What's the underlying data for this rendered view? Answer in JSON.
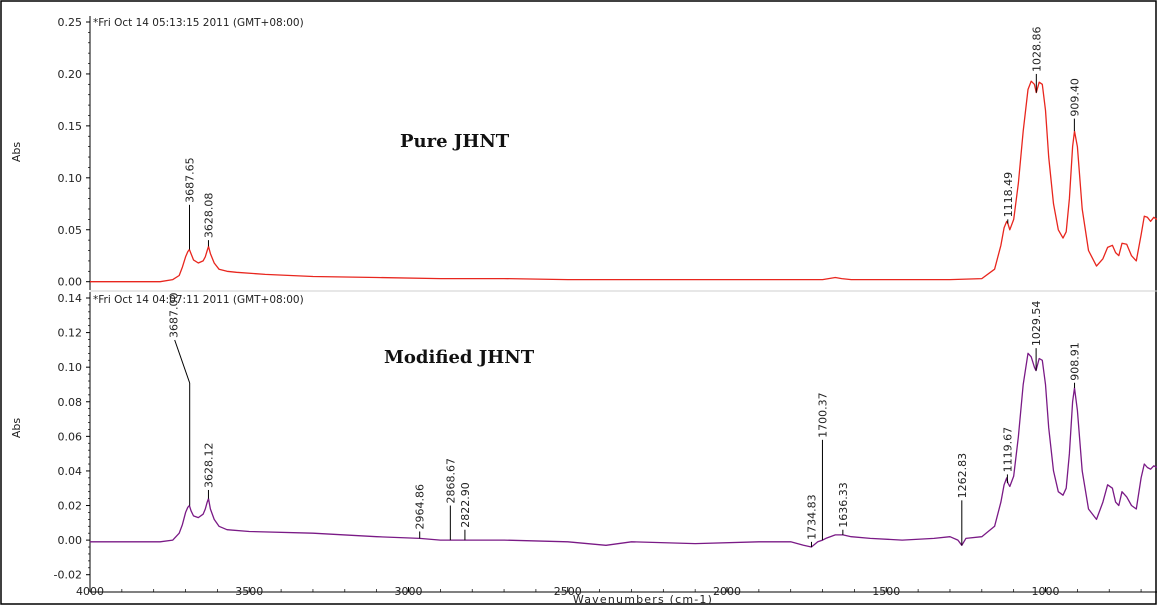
{
  "chart_data": [
    {
      "type": "line",
      "panel": "top",
      "title": "Pure JHNT",
      "timestamp": "*Fri Oct 14 05:13:15 2011 (GMT+08:00)",
      "ylabel": "Abs",
      "xlabel": "Wavenumbers (cm-1)",
      "xlim": [
        4000,
        650
      ],
      "ylim": [
        -0.008,
        0.25
      ],
      "yticks": [
        "0.00",
        "0.05",
        "0.10",
        "0.15",
        "0.20",
        "0.25"
      ],
      "xticks": [
        "4000",
        "3500",
        "3000",
        "2500",
        "2000",
        "1500",
        "1000"
      ],
      "color": "#e8261e",
      "series": [
        {
          "x": [
            4000,
            3780,
            3740,
            3720,
            3710,
            3700,
            3693,
            3688,
            3683,
            3675,
            3660,
            3645,
            3638,
            3632,
            3628,
            3622,
            3610,
            3595,
            3570,
            3540,
            3450,
            3300,
            3100,
            2900,
            2700,
            2500,
            2300,
            2100,
            1900,
            1800,
            1700,
            1660,
            1640,
            1610,
            1500,
            1400,
            1300,
            1200,
            1160,
            1140,
            1130,
            1122,
            1118,
            1112,
            1100,
            1085,
            1070,
            1055,
            1045,
            1035,
            1029,
            1020,
            1010,
            1000,
            990,
            975,
            960,
            945,
            935,
            925,
            915,
            909,
            900,
            885,
            865,
            840,
            820,
            805,
            790,
            780,
            770,
            760,
            745,
            730,
            715,
            700,
            690,
            680,
            670,
            660,
            650
          ],
          "y": [
            0.0,
            0.0,
            0.002,
            0.006,
            0.014,
            0.024,
            0.029,
            0.031,
            0.027,
            0.021,
            0.018,
            0.02,
            0.024,
            0.03,
            0.034,
            0.027,
            0.018,
            0.012,
            0.01,
            0.009,
            0.007,
            0.005,
            0.004,
            0.003,
            0.003,
            0.002,
            0.002,
            0.002,
            0.002,
            0.002,
            0.002,
            0.004,
            0.003,
            0.002,
            0.002,
            0.002,
            0.002,
            0.003,
            0.012,
            0.035,
            0.052,
            0.058,
            0.056,
            0.05,
            0.06,
            0.095,
            0.145,
            0.185,
            0.193,
            0.19,
            0.182,
            0.192,
            0.19,
            0.165,
            0.12,
            0.075,
            0.05,
            0.042,
            0.048,
            0.08,
            0.13,
            0.145,
            0.13,
            0.07,
            0.03,
            0.015,
            0.022,
            0.033,
            0.035,
            0.028,
            0.025,
            0.037,
            0.036,
            0.025,
            0.02,
            0.045,
            0.063,
            0.062,
            0.058,
            0.062,
            0.06
          ]
        }
      ],
      "annotations": [
        {
          "label": "3687.65",
          "x": 3687.65,
          "y_top": 0.074
        },
        {
          "label": "3628.08",
          "x": 3628.08,
          "y_top": 0.04
        },
        {
          "label": "1118.49",
          "x": 1118.49,
          "y_top": 0.06
        },
        {
          "label": "1028.86",
          "x": 1028.86,
          "y_top": 0.2
        },
        {
          "label": "909.40",
          "x": 909.4,
          "y_top": 0.157
        }
      ]
    },
    {
      "type": "line",
      "panel": "bottom",
      "title": "Modified JHNT",
      "timestamp": "*Fri Oct 14 04:07:11 2011 (GMT+08:00)",
      "ylabel": "Abs",
      "xlabel": "Wavenumbers (cm-1)",
      "xlim": [
        4000,
        650
      ],
      "ylim": [
        -0.03,
        0.14
      ],
      "yticks": [
        "-0.02",
        "0.00",
        "0.02",
        "0.04",
        "0.06",
        "0.08",
        "0.10",
        "0.12",
        "0.14"
      ],
      "xticks": [
        "4000",
        "3500",
        "3000",
        "2500",
        "2000",
        "1500",
        "1000"
      ],
      "color": "#7a1a86",
      "series": [
        {
          "x": [
            4000,
            3780,
            3740,
            3720,
            3710,
            3700,
            3693,
            3688,
            3683,
            3675,
            3660,
            3645,
            3638,
            3632,
            3628,
            3622,
            3610,
            3595,
            3570,
            3500,
            3300,
            3100,
            2965,
            2900,
            2869,
            2823,
            2700,
            2500,
            2380,
            2300,
            2100,
            1900,
            1800,
            1760,
            1735,
            1715,
            1700,
            1690,
            1660,
            1636,
            1610,
            1550,
            1450,
            1350,
            1300,
            1275,
            1263,
            1250,
            1200,
            1160,
            1140,
            1130,
            1122,
            1118,
            1112,
            1100,
            1085,
            1070,
            1055,
            1045,
            1035,
            1030,
            1020,
            1010,
            1000,
            990,
            975,
            960,
            945,
            935,
            925,
            915,
            909,
            900,
            885,
            865,
            840,
            820,
            805,
            790,
            780,
            770,
            760,
            745,
            730,
            715,
            700,
            690,
            680,
            670,
            660,
            650
          ],
          "y": [
            -0.001,
            -0.001,
            0.0,
            0.004,
            0.009,
            0.016,
            0.019,
            0.02,
            0.017,
            0.014,
            0.013,
            0.015,
            0.018,
            0.022,
            0.024,
            0.018,
            0.012,
            0.008,
            0.006,
            0.005,
            0.004,
            0.002,
            0.001,
            0.0,
            0.0,
            0.0,
            0.0,
            -0.001,
            -0.003,
            -0.001,
            -0.002,
            -0.001,
            -0.001,
            -0.003,
            -0.004,
            -0.001,
            0.0,
            0.001,
            0.003,
            0.003,
            0.002,
            0.001,
            0.0,
            0.001,
            0.002,
            0.0,
            -0.003,
            0.001,
            0.002,
            0.008,
            0.022,
            0.032,
            0.036,
            0.033,
            0.031,
            0.037,
            0.06,
            0.09,
            0.108,
            0.106,
            0.1,
            0.098,
            0.105,
            0.104,
            0.09,
            0.065,
            0.04,
            0.028,
            0.026,
            0.03,
            0.05,
            0.08,
            0.088,
            0.075,
            0.04,
            0.018,
            0.012,
            0.022,
            0.032,
            0.03,
            0.022,
            0.02,
            0.028,
            0.025,
            0.02,
            0.018,
            0.036,
            0.044,
            0.042,
            0.041,
            0.043,
            0.042
          ]
        }
      ],
      "annotations": [
        {
          "label": "3687.00",
          "x": 3687.0,
          "y_top": 0.085,
          "leader": true
        },
        {
          "label": "3628.12",
          "x": 3628.12,
          "y_top": 0.029
        },
        {
          "label": "2964.86",
          "x": 2964.86,
          "y_top": 0.005
        },
        {
          "label": "2868.67",
          "x": 2868.67,
          "y_top": 0.02
        },
        {
          "label": "2822.90",
          "x": 2822.9,
          "y_top": 0.006
        },
        {
          "label": "1734.83",
          "x": 1734.83,
          "y_top": -0.001
        },
        {
          "label": "1700.37",
          "x": 1700.37,
          "y_top": 0.058
        },
        {
          "label": "1636.33",
          "x": 1636.33,
          "y_top": 0.006
        },
        {
          "label": "1262.83",
          "x": 1262.83,
          "y_top": 0.023
        },
        {
          "label": "1119.67",
          "x": 1119.67,
          "y_top": 0.038
        },
        {
          "label": "1029.54",
          "x": 1029.54,
          "y_top": 0.111
        },
        {
          "label": "908.91",
          "x": 908.91,
          "y_top": 0.091
        }
      ]
    }
  ]
}
